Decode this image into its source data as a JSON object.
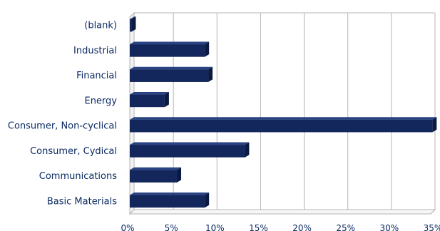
{
  "chart_data": {
    "type": "bar",
    "orientation": "horizontal",
    "categories": [
      "(blank)",
      "Industrial",
      "Financial",
      "Energy",
      "Consumer, Non-cyclical",
      "Consumer, Cydical",
      "Communications",
      "Basic Materials"
    ],
    "values": [
      0.2,
      8.6,
      9.0,
      4.0,
      34.7,
      13.2,
      5.4,
      8.6
    ],
    "value_unit": "%",
    "xlim": [
      0,
      35
    ],
    "x_ticks": [
      "0%",
      "5%",
      "10%",
      "15%",
      "20%",
      "25%",
      "30%",
      "35%"
    ],
    "grid": "vertical",
    "legend": "none",
    "colors": {
      "bar": "#13275c",
      "bar_side": "#0a1a40",
      "grid": "#b4b4b4",
      "text": "#0b2a63"
    }
  }
}
